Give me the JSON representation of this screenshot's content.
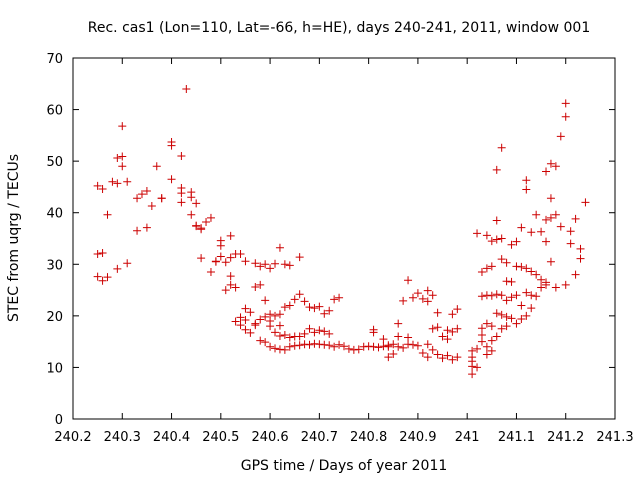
{
  "colors": {
    "points": "#cc0000",
    "axis": "#000000",
    "background": "#ffffff"
  },
  "chart_data": {
    "type": "scatter",
    "title": "Rec. cas1 (Lon=110, Lat=-66, h=HE), days 240-241, 2011, window 001",
    "xlabel": "GPS time / Days of year 2011",
    "ylabel": "STEC from uqrg / TECUs",
    "xlim": [
      240.2,
      241.3
    ],
    "ylim": [
      0,
      70
    ],
    "xticks": [
      240.2,
      240.3,
      240.4,
      240.5,
      240.6,
      240.7,
      240.8,
      240.9,
      241.0,
      241.1,
      241.2,
      241.3
    ],
    "xtick_labels": [
      "240.2",
      "240.3",
      "240.4",
      "240.5",
      "240.6",
      "240.7",
      "240.8",
      "240.9",
      "241",
      "241.1",
      "241.2",
      "241.3"
    ],
    "yticks": [
      0,
      10,
      20,
      30,
      40,
      50,
      60,
      70
    ],
    "ytick_labels": [
      "0",
      "10",
      "20",
      "30",
      "40",
      "50",
      "60",
      "70"
    ],
    "grid": false,
    "marker": "plus",
    "points": [
      [
        240.25,
        45.2
      ],
      [
        240.26,
        44.6
      ],
      [
        240.28,
        46.0
      ],
      [
        240.29,
        45.7
      ],
      [
        240.29,
        50.6
      ],
      [
        240.3,
        50.9
      ],
      [
        240.3,
        49.0
      ],
      [
        240.3,
        56.8
      ],
      [
        240.31,
        46.0
      ],
      [
        240.33,
        42.8
      ],
      [
        240.34,
        43.6
      ],
      [
        240.35,
        44.2
      ],
      [
        240.37,
        49.0
      ],
      [
        240.38,
        42.8
      ],
      [
        240.4,
        46.5
      ],
      [
        240.4,
        53.7
      ],
      [
        240.4,
        53.0
      ],
      [
        240.42,
        51.0
      ],
      [
        240.42,
        44.8
      ],
      [
        240.42,
        43.8
      ],
      [
        240.43,
        64.0
      ],
      [
        240.44,
        43.0
      ],
      [
        240.44,
        44.0
      ],
      [
        240.45,
        41.8
      ],
      [
        240.45,
        37.4
      ],
      [
        240.46,
        37.0
      ],
      [
        240.47,
        38.2
      ],
      [
        240.48,
        39.0
      ],
      [
        240.49,
        30.6
      ],
      [
        240.5,
        33.6
      ],
      [
        240.5,
        34.6
      ],
      [
        240.51,
        30.4
      ],
      [
        240.52,
        35.5
      ],
      [
        240.52,
        31.3
      ],
      [
        240.53,
        32.0
      ],
      [
        240.54,
        32.0
      ],
      [
        240.55,
        30.6
      ],
      [
        240.57,
        30.2
      ],
      [
        240.58,
        29.6
      ],
      [
        240.59,
        30.0
      ],
      [
        240.6,
        29.2
      ],
      [
        240.61,
        30.1
      ],
      [
        240.62,
        33.2
      ],
      [
        240.63,
        30.0
      ],
      [
        240.64,
        29.8
      ],
      [
        240.66,
        31.4
      ],
      [
        240.25,
        32.0
      ],
      [
        240.26,
        32.2
      ],
      [
        240.27,
        39.6
      ],
      [
        240.29,
        29.1
      ],
      [
        240.31,
        30.2
      ],
      [
        240.33,
        36.5
      ],
      [
        240.35,
        37.1
      ],
      [
        240.36,
        41.3
      ],
      [
        240.38,
        42.8
      ],
      [
        240.42,
        42.0
      ],
      [
        240.44,
        39.6
      ],
      [
        240.45,
        37.5
      ],
      [
        240.46,
        36.8
      ],
      [
        240.46,
        31.2
      ],
      [
        240.48,
        28.5
      ],
      [
        240.49,
        30.5
      ],
      [
        240.5,
        31.5
      ],
      [
        240.51,
        25.0
      ],
      [
        240.52,
        26.0
      ],
      [
        240.52,
        27.7
      ],
      [
        240.53,
        25.5
      ],
      [
        240.54,
        19.7
      ],
      [
        240.55,
        19.2
      ],
      [
        240.55,
        21.4
      ],
      [
        240.56,
        20.7
      ],
      [
        240.57,
        18.5
      ],
      [
        240.57,
        25.6
      ],
      [
        240.58,
        26.0
      ],
      [
        240.59,
        23.0
      ],
      [
        240.6,
        20.3
      ],
      [
        240.6,
        19.0
      ],
      [
        240.61,
        20.0
      ],
      [
        240.62,
        20.3
      ],
      [
        240.62,
        18.1
      ],
      [
        240.63,
        21.7
      ],
      [
        240.64,
        22.0
      ],
      [
        240.65,
        23.2
      ],
      [
        240.66,
        24.2
      ],
      [
        240.67,
        22.8
      ],
      [
        240.68,
        21.7
      ],
      [
        240.69,
        21.5
      ],
      [
        240.7,
        21.8
      ],
      [
        240.71,
        20.4
      ],
      [
        240.72,
        21.0
      ],
      [
        240.73,
        23.2
      ],
      [
        240.74,
        23.5
      ],
      [
        240.25,
        27.6
      ],
      [
        240.26,
        26.8
      ],
      [
        240.27,
        27.5
      ],
      [
        240.53,
        18.9
      ],
      [
        240.54,
        18.2
      ],
      [
        240.55,
        17.3
      ],
      [
        240.56,
        16.7
      ],
      [
        240.57,
        18.2
      ],
      [
        240.58,
        19.3
      ],
      [
        240.59,
        19.8
      ],
      [
        240.6,
        18.0
      ],
      [
        240.61,
        16.8
      ],
      [
        240.62,
        16.1
      ],
      [
        240.63,
        16.3
      ],
      [
        240.64,
        15.8
      ],
      [
        240.65,
        16.0
      ],
      [
        240.66,
        16.0
      ],
      [
        240.67,
        16.5
      ],
      [
        240.68,
        17.5
      ],
      [
        240.69,
        16.8
      ],
      [
        240.7,
        17.2
      ],
      [
        240.71,
        17.0
      ],
      [
        240.72,
        16.5
      ],
      [
        240.58,
        15.2
      ],
      [
        240.59,
        14.9
      ],
      [
        240.6,
        14.0
      ],
      [
        240.61,
        13.7
      ],
      [
        240.62,
        13.5
      ],
      [
        240.63,
        13.4
      ],
      [
        240.64,
        14.0
      ],
      [
        240.65,
        14.2
      ],
      [
        240.66,
        14.3
      ],
      [
        240.67,
        14.5
      ],
      [
        240.68,
        14.4
      ],
      [
        240.69,
        14.6
      ],
      [
        240.7,
        14.5
      ],
      [
        240.71,
        14.4
      ],
      [
        240.72,
        14.3
      ],
      [
        240.73,
        14.0
      ],
      [
        240.74,
        14.4
      ],
      [
        240.75,
        14.1
      ],
      [
        240.76,
        13.6
      ],
      [
        240.77,
        13.4
      ],
      [
        240.78,
        13.5
      ],
      [
        240.79,
        14.0
      ],
      [
        240.8,
        14.1
      ],
      [
        240.81,
        14.0
      ],
      [
        240.82,
        13.9
      ],
      [
        240.83,
        14.1
      ],
      [
        240.84,
        14.3
      ],
      [
        240.85,
        14.5
      ],
      [
        240.86,
        14.0
      ],
      [
        240.87,
        13.8
      ],
      [
        240.88,
        14.5
      ],
      [
        240.89,
        14.4
      ],
      [
        240.9,
        14.2
      ],
      [
        240.81,
        16.8
      ],
      [
        240.81,
        17.3
      ],
      [
        240.83,
        15.5
      ],
      [
        240.84,
        14.0
      ],
      [
        240.84,
        12.0
      ],
      [
        240.85,
        12.6
      ],
      [
        240.86,
        16.0
      ],
      [
        240.86,
        18.5
      ],
      [
        240.87,
        22.9
      ],
      [
        240.88,
        26.9
      ],
      [
        240.88,
        15.8
      ],
      [
        240.89,
        23.5
      ],
      [
        240.9,
        24.4
      ],
      [
        240.91,
        23.3
      ],
      [
        240.92,
        24.9
      ],
      [
        240.92,
        22.8
      ],
      [
        240.93,
        24.0
      ],
      [
        240.94,
        20.6
      ],
      [
        240.93,
        17.5
      ],
      [
        240.94,
        17.8
      ],
      [
        240.95,
        16.0
      ],
      [
        240.96,
        17.2
      ],
      [
        240.97,
        16.9
      ],
      [
        240.97,
        20.3
      ],
      [
        240.98,
        21.3
      ],
      [
        240.98,
        17.5
      ],
      [
        240.91,
        12.8
      ],
      [
        240.92,
        12.0
      ],
      [
        240.93,
        13.4
      ],
      [
        240.94,
        12.5
      ],
      [
        240.95,
        11.8
      ],
      [
        240.96,
        12.3
      ],
      [
        240.97,
        11.5
      ],
      [
        240.98,
        12.0
      ],
      [
        240.92,
        14.5
      ],
      [
        240.96,
        15.5
      ],
      [
        241.01,
        13.2
      ],
      [
        241.01,
        12.0
      ],
      [
        241.01,
        11.2
      ],
      [
        241.01,
        10.2
      ],
      [
        241.01,
        8.7
      ],
      [
        241.02,
        13.6
      ],
      [
        241.02,
        10.0
      ],
      [
        241.03,
        15.0
      ],
      [
        241.03,
        17.6
      ],
      [
        241.03,
        16.3
      ],
      [
        241.03,
        23.8
      ],
      [
        241.04,
        14.0
      ],
      [
        241.04,
        12.5
      ],
      [
        241.04,
        18.5
      ],
      [
        241.04,
        24.0
      ],
      [
        241.05,
        15.2
      ],
      [
        241.05,
        13.2
      ],
      [
        241.05,
        18.0
      ],
      [
        241.05,
        23.9
      ],
      [
        241.06,
        16.0
      ],
      [
        241.06,
        20.5
      ],
      [
        241.06,
        24.2
      ],
      [
        241.07,
        17.5
      ],
      [
        241.07,
        20.2
      ],
      [
        241.07,
        24.0
      ],
      [
        241.08,
        18.0
      ],
      [
        241.08,
        19.8
      ],
      [
        241.08,
        23.0
      ],
      [
        241.09,
        19.5
      ],
      [
        241.09,
        23.6
      ],
      [
        241.1,
        18.5
      ],
      [
        241.1,
        24.0
      ],
      [
        241.11,
        19.4
      ],
      [
        241.11,
        22.0
      ],
      [
        241.12,
        20.0
      ],
      [
        241.12,
        24.5
      ],
      [
        241.13,
        21.5
      ],
      [
        241.13,
        24.0
      ],
      [
        241.14,
        23.8
      ],
      [
        241.15,
        25.5
      ],
      [
        241.16,
        26.0
      ],
      [
        241.02,
        36.0
      ],
      [
        241.03,
        28.5
      ],
      [
        241.04,
        29.2
      ],
      [
        241.04,
        35.6
      ],
      [
        241.05,
        29.6
      ],
      [
        241.05,
        34.5
      ],
      [
        241.06,
        38.5
      ],
      [
        241.06,
        48.3
      ],
      [
        241.06,
        34.8
      ],
      [
        241.07,
        35.0
      ],
      [
        241.07,
        31.0
      ],
      [
        241.07,
        52.6
      ],
      [
        241.08,
        26.7
      ],
      [
        241.08,
        30.3
      ],
      [
        241.09,
        33.8
      ],
      [
        241.09,
        26.6
      ],
      [
        241.1,
        34.4
      ],
      [
        241.1,
        29.6
      ],
      [
        241.11,
        37.1
      ],
      [
        241.11,
        29.5
      ],
      [
        241.12,
        46.3
      ],
      [
        241.12,
        44.5
      ],
      [
        241.12,
        29.2
      ],
      [
        241.13,
        36.2
      ],
      [
        241.13,
        28.6
      ],
      [
        241.14,
        39.6
      ],
      [
        241.14,
        28.0
      ],
      [
        241.15,
        36.3
      ],
      [
        241.15,
        27.0
      ],
      [
        241.16,
        34.4
      ],
      [
        241.16,
        38.6
      ],
      [
        241.16,
        48.0
      ],
      [
        241.16,
        26.5
      ],
      [
        241.17,
        42.8
      ],
      [
        241.17,
        49.5
      ],
      [
        241.17,
        39.0
      ],
      [
        241.17,
        30.5
      ],
      [
        241.18,
        39.6
      ],
      [
        241.18,
        49.0
      ],
      [
        241.18,
        25.5
      ],
      [
        241.19,
        54.8
      ],
      [
        241.19,
        37.3
      ],
      [
        241.2,
        61.2
      ],
      [
        241.2,
        58.6
      ],
      [
        241.2,
        26.0
      ],
      [
        241.21,
        36.4
      ],
      [
        241.21,
        34.0
      ],
      [
        241.22,
        38.8
      ],
      [
        241.22,
        28.0
      ],
      [
        241.23,
        33.0
      ],
      [
        241.23,
        31.1
      ],
      [
        241.24,
        42.0
      ]
    ]
  }
}
